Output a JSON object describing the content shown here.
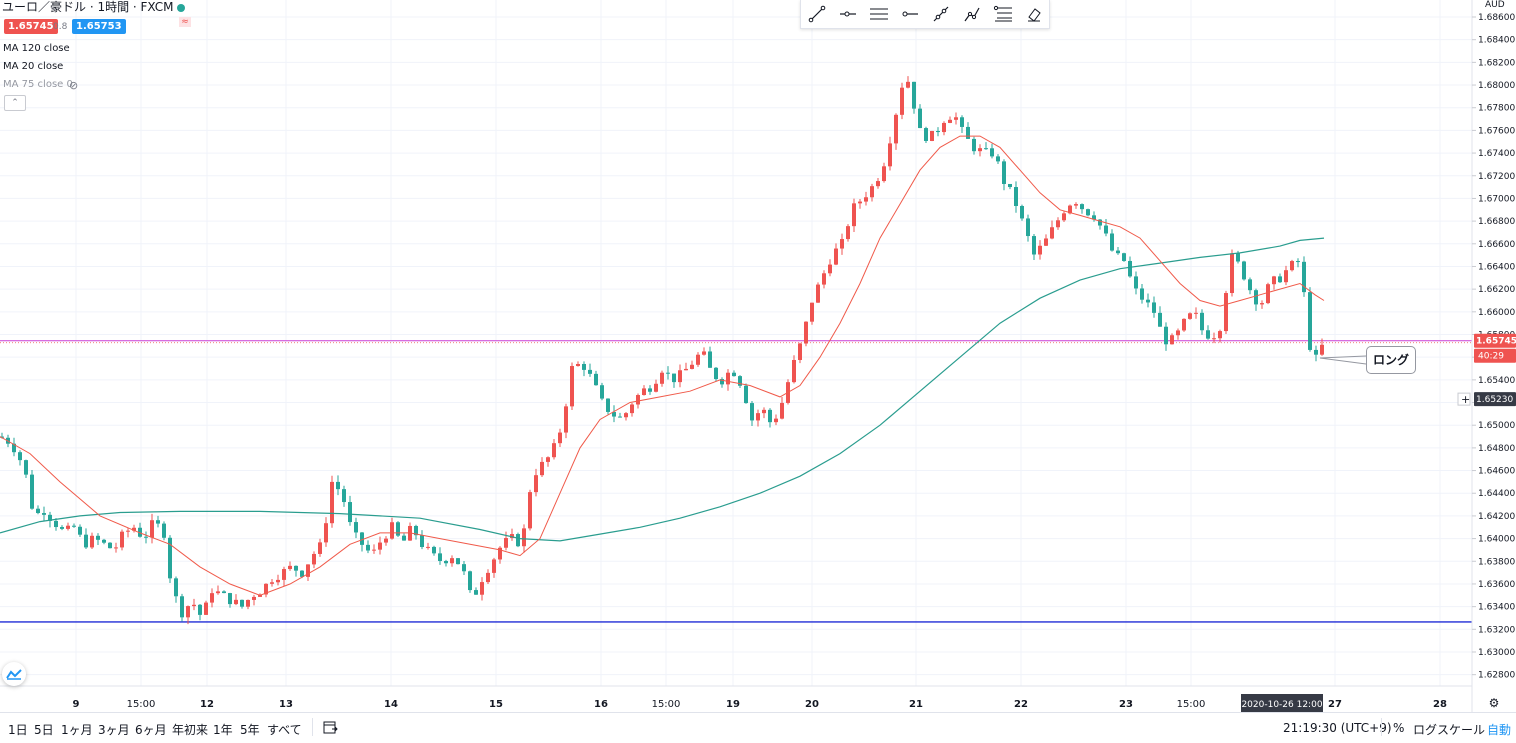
{
  "legend": {
    "title": "ユーロ／豪ドル · 1時間 · FXCM",
    "sell_price": "1.65745",
    "spread": "0.8",
    "buy_price": "1.65753",
    "indicators": [
      "MA 120 close",
      "MA 20 close",
      "MA 75 close 0"
    ]
  },
  "toolbar": {
    "tools": [
      "trend-line-icon",
      "horizontal-ray-icon",
      "parallel-channel-icon",
      "ray-icon",
      "extended-line-icon",
      "path-icon",
      "fib-retracement-icon",
      "eraser-icon"
    ]
  },
  "annotation": {
    "text": "ロング"
  },
  "price_scale": {
    "currency": "AUD",
    "ticks": [
      "1.68600",
      "1.68400",
      "1.68200",
      "1.68000",
      "1.67800",
      "1.67600",
      "1.67400",
      "1.67200",
      "1.67000",
      "1.66800",
      "1.66600",
      "1.66400",
      "1.66200",
      "1.66000",
      "1.65800",
      "1.65600",
      "1.65400",
      "1.65200",
      "1.65000",
      "1.64800",
      "1.64600",
      "1.64400",
      "1.64200",
      "1.64000",
      "1.63800",
      "1.63600",
      "1.63400",
      "1.63200",
      "1.63000",
      "1.62800"
    ],
    "last_price_label": "1.65745",
    "countdown_label": "40:29",
    "crosshair_label": "1.65230"
  },
  "time_scale": {
    "labels": [
      "9",
      "15:00",
      "12",
      "13",
      "14",
      "15",
      "16",
      "15:00",
      "19",
      "20",
      "21",
      "22",
      "23",
      "15:00",
      "27",
      "28"
    ],
    "crosshair_label": "2020-10-26 12:00"
  },
  "bottom_bar": {
    "periods": [
      "1日",
      "5日",
      "1ヶ月",
      "3ヶ月",
      "6ヶ月",
      "年初来",
      "1年",
      "5年",
      "すべて"
    ],
    "clock": "21:19:30 (UTC+9)",
    "percent": "%",
    "log_scale": "ログスケール",
    "auto": "自動"
  },
  "colors": {
    "up": "#ef5350",
    "down": "#26a69a",
    "ma120": "#2a9d8f",
    "ma20": "#f05a4a",
    "last_price": "#ef5350",
    "support_line": "#1e2bd6",
    "price_line": "#c93fd6",
    "buy_tag": "#2196f3",
    "sell_tag": "#ef5350"
  },
  "chart_data": {
    "type": "candlestick",
    "timeframe": "1h",
    "ylim": [
      1.627,
      1.6875
    ],
    "horizontal_lines": [
      {
        "name": "support",
        "value": 1.63265
      },
      {
        "name": "last-price",
        "value": 1.65745
      }
    ],
    "anchors": [
      [
        0,
        1.649
      ],
      [
        10,
        1.6485
      ],
      [
        18,
        1.6475
      ],
      [
        26,
        1.6455
      ],
      [
        34,
        1.642
      ],
      [
        44,
        1.6425
      ],
      [
        54,
        1.6415
      ],
      [
        64,
        1.6405
      ],
      [
        74,
        1.641
      ],
      [
        84,
        1.6395
      ],
      [
        94,
        1.64
      ],
      [
        104,
        1.6395
      ],
      [
        114,
        1.639
      ],
      [
        124,
        1.6405
      ],
      [
        134,
        1.641
      ],
      [
        144,
        1.64
      ],
      [
        154,
        1.6415
      ],
      [
        164,
        1.6405
      ],
      [
        172,
        1.6355
      ],
      [
        182,
        1.6335
      ],
      [
        192,
        1.6345
      ],
      [
        202,
        1.633
      ],
      [
        212,
        1.6355
      ],
      [
        222,
        1.635
      ],
      [
        232,
        1.6345
      ],
      [
        242,
        1.634
      ],
      [
        252,
        1.635
      ],
      [
        262,
        1.6355
      ],
      [
        272,
        1.6365
      ],
      [
        282,
        1.637
      ],
      [
        292,
        1.6375
      ],
      [
        302,
        1.637
      ],
      [
        312,
        1.6385
      ],
      [
        322,
        1.6395
      ],
      [
        332,
        1.645
      ],
      [
        342,
        1.644
      ],
      [
        352,
        1.6405
      ],
      [
        362,
        1.6395
      ],
      [
        372,
        1.6385
      ],
      [
        382,
        1.64
      ],
      [
        392,
        1.641
      ],
      [
        402,
        1.6395
      ],
      [
        412,
        1.641
      ],
      [
        422,
        1.6395
      ],
      [
        432,
        1.6385
      ],
      [
        442,
        1.638
      ],
      [
        452,
        1.6385
      ],
      [
        462,
        1.6375
      ],
      [
        472,
        1.6345
      ],
      [
        482,
        1.6365
      ],
      [
        492,
        1.638
      ],
      [
        502,
        1.6395
      ],
      [
        512,
        1.64
      ],
      [
        522,
        1.6395
      ],
      [
        532,
        1.6455
      ],
      [
        542,
        1.6465
      ],
      [
        552,
        1.6475
      ],
      [
        562,
        1.65
      ],
      [
        572,
        1.655
      ],
      [
        582,
        1.6555
      ],
      [
        592,
        1.654
      ],
      [
        602,
        1.652
      ],
      [
        612,
        1.651
      ],
      [
        622,
        1.6505
      ],
      [
        632,
        1.652
      ],
      [
        642,
        1.653
      ],
      [
        652,
        1.6535
      ],
      [
        662,
        1.655
      ],
      [
        672,
        1.654
      ],
      [
        682,
        1.6545
      ],
      [
        692,
        1.6555
      ],
      [
        702,
        1.6565
      ],
      [
        712,
        1.6545
      ],
      [
        722,
        1.654
      ],
      [
        732,
        1.655
      ],
      [
        742,
        1.6535
      ],
      [
        752,
        1.6505
      ],
      [
        762,
        1.6515
      ],
      [
        772,
        1.65
      ],
      [
        782,
        1.652
      ],
      [
        792,
        1.655
      ],
      [
        802,
        1.6575
      ],
      [
        812,
        1.661
      ],
      [
        822,
        1.663
      ],
      [
        832,
        1.665
      ],
      [
        842,
        1.666
      ],
      [
        852,
        1.669
      ],
      [
        862,
        1.67
      ],
      [
        872,
        1.671
      ],
      [
        882,
        1.6725
      ],
      [
        892,
        1.676
      ],
      [
        902,
        1.68
      ],
      [
        910,
        1.6805
      ],
      [
        918,
        1.676
      ],
      [
        926,
        1.6755
      ],
      [
        934,
        1.6755
      ],
      [
        944,
        1.677
      ],
      [
        954,
        1.6775
      ],
      [
        964,
        1.6755
      ],
      [
        974,
        1.6745
      ],
      [
        984,
        1.674
      ],
      [
        994,
        1.674
      ],
      [
        1004,
        1.6715
      ],
      [
        1014,
        1.67
      ],
      [
        1024,
        1.6675
      ],
      [
        1034,
        1.665
      ],
      [
        1044,
        1.666
      ],
      [
        1054,
        1.6675
      ],
      [
        1064,
        1.669
      ],
      [
        1074,
        1.67
      ],
      [
        1084,
        1.669
      ],
      [
        1094,
        1.6685
      ],
      [
        1104,
        1.667
      ],
      [
        1114,
        1.665
      ],
      [
        1124,
        1.6645
      ],
      [
        1134,
        1.662
      ],
      [
        1144,
        1.661
      ],
      [
        1154,
        1.66
      ],
      [
        1164,
        1.6575
      ],
      [
        1174,
        1.6575
      ],
      [
        1184,
        1.659
      ],
      [
        1194,
        1.66
      ],
      [
        1204,
        1.658
      ],
      [
        1214,
        1.658
      ],
      [
        1222,
        1.659
      ],
      [
        1230,
        1.665
      ],
      [
        1240,
        1.664
      ],
      [
        1250,
        1.662
      ],
      [
        1260,
        1.6605
      ],
      [
        1270,
        1.6625
      ],
      [
        1280,
        1.663
      ],
      [
        1290,
        1.664
      ],
      [
        1300,
        1.6645
      ],
      [
        1306,
        1.66
      ],
      [
        1312,
        1.6555
      ],
      [
        1318,
        1.656
      ],
      [
        1324,
        1.6574
      ]
    ],
    "ma20": [
      [
        0,
        1.649
      ],
      [
        30,
        1.6475
      ],
      [
        60,
        1.645
      ],
      [
        100,
        1.642
      ],
      [
        140,
        1.6405
      ],
      [
        170,
        1.6395
      ],
      [
        200,
        1.6375
      ],
      [
        230,
        1.636
      ],
      [
        260,
        1.635
      ],
      [
        290,
        1.636
      ],
      [
        320,
        1.6375
      ],
      [
        350,
        1.6395
      ],
      [
        380,
        1.6405
      ],
      [
        410,
        1.6405
      ],
      [
        440,
        1.64
      ],
      [
        470,
        1.6395
      ],
      [
        500,
        1.639
      ],
      [
        520,
        1.6385
      ],
      [
        540,
        1.64
      ],
      [
        560,
        1.644
      ],
      [
        580,
        1.648
      ],
      [
        600,
        1.6505
      ],
      [
        630,
        1.652
      ],
      [
        660,
        1.6525
      ],
      [
        690,
        1.653
      ],
      [
        720,
        1.654
      ],
      [
        750,
        1.6535
      ],
      [
        780,
        1.6525
      ],
      [
        800,
        1.6535
      ],
      [
        820,
        1.656
      ],
      [
        840,
        1.659
      ],
      [
        860,
        1.6625
      ],
      [
        880,
        1.6665
      ],
      [
        900,
        1.6695
      ],
      [
        920,
        1.6725
      ],
      [
        940,
        1.6745
      ],
      [
        960,
        1.6755
      ],
      [
        980,
        1.6755
      ],
      [
        1000,
        1.6745
      ],
      [
        1020,
        1.6725
      ],
      [
        1040,
        1.6705
      ],
      [
        1060,
        1.669
      ],
      [
        1080,
        1.6685
      ],
      [
        1100,
        1.668
      ],
      [
        1120,
        1.6675
      ],
      [
        1140,
        1.6665
      ],
      [
        1160,
        1.6645
      ],
      [
        1180,
        1.6625
      ],
      [
        1200,
        1.661
      ],
      [
        1220,
        1.6605
      ],
      [
        1240,
        1.661
      ],
      [
        1260,
        1.6615
      ],
      [
        1280,
        1.662
      ],
      [
        1300,
        1.6625
      ],
      [
        1315,
        1.6615
      ],
      [
        1324,
        1.661
      ]
    ],
    "ma120": [
      [
        0,
        1.6405
      ],
      [
        40,
        1.6415
      ],
      [
        80,
        1.642
      ],
      [
        120,
        1.6423
      ],
      [
        180,
        1.6424
      ],
      [
        260,
        1.6424
      ],
      [
        340,
        1.6422
      ],
      [
        420,
        1.6418
      ],
      [
        480,
        1.6408
      ],
      [
        520,
        1.64
      ],
      [
        560,
        1.6398
      ],
      [
        600,
        1.6404
      ],
      [
        640,
        1.641
      ],
      [
        680,
        1.6418
      ],
      [
        720,
        1.6428
      ],
      [
        760,
        1.644
      ],
      [
        800,
        1.6455
      ],
      [
        840,
        1.6475
      ],
      [
        880,
        1.65
      ],
      [
        920,
        1.653
      ],
      [
        960,
        1.656
      ],
      [
        1000,
        1.659
      ],
      [
        1040,
        1.6612
      ],
      [
        1080,
        1.6628
      ],
      [
        1120,
        1.6638
      ],
      [
        1160,
        1.6643
      ],
      [
        1200,
        1.6648
      ],
      [
        1240,
        1.6652
      ],
      [
        1280,
        1.6658
      ],
      [
        1300,
        1.6663
      ],
      [
        1324,
        1.6665
      ]
    ]
  }
}
